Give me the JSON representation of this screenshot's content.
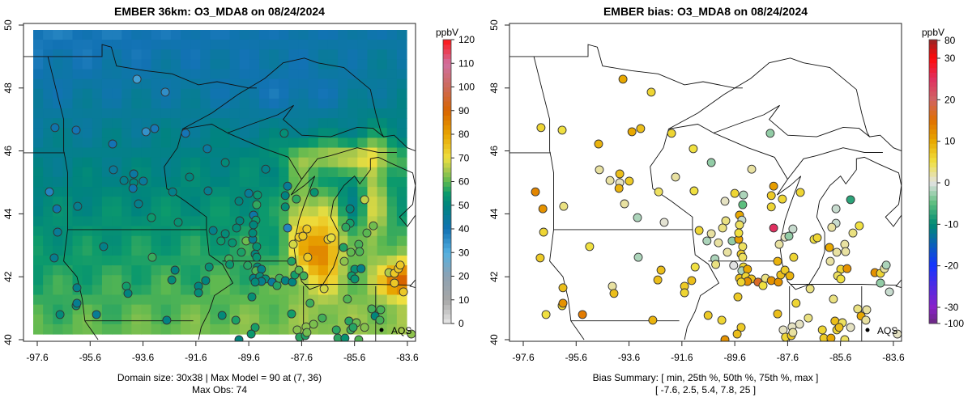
{
  "left": {
    "title": "EMBER 36km: O3_MDA8 on 08/24/2024",
    "caption_line1": "Domain size: 30x38 | Max Model = 90 at (7, 36)",
    "caption_line2": "Max Obs: 74",
    "colorbar": {
      "unit": "ppbV",
      "ticks": [
        "120",
        "110",
        "100",
        "90",
        "80",
        "70",
        "60",
        "50",
        "40",
        "30",
        "20",
        "10",
        "0"
      ]
    },
    "legend_label": "AQS"
  },
  "right": {
    "title": "EMBER bias: O3_MDA8 on 08/24/2024",
    "caption_line1": "Bias Summary: [ min, 25th %, 50th %, 75th %, max ]",
    "caption_line2": "[ -7.6,   2.5,   5.4,   7.8,   25 ]",
    "colorbar": {
      "unit": "ppbV",
      "ticks": [
        "80",
        "30",
        "20",
        "10",
        "0",
        "-10",
        "-20",
        "-30",
        "-100"
      ]
    },
    "legend_label": "AQS"
  },
  "axes": {
    "x_ticks": [
      "-97.6",
      "-95.6",
      "-93.6",
      "-91.6",
      "-89.6",
      "-87.6",
      "-85.6",
      "-83.6"
    ],
    "y_ticks": [
      "40",
      "42",
      "44",
      "46",
      "48",
      "50"
    ]
  },
  "chart_data": {
    "type": "map",
    "lon_range": [
      -98.1,
      -83.3
    ],
    "lat_range": [
      39.95,
      50.05
    ],
    "model_grid_size": "30x38",
    "max_model": 90,
    "max_obs": 74,
    "bias_summary": {
      "min": -7.6,
      "p25": 2.5,
      "p50": 5.4,
      "p75": 7.8,
      "max": 25
    },
    "o3_scale": [
      [
        0,
        "#e8e8e8"
      ],
      [
        10,
        "#a6a6a6"
      ],
      [
        20,
        "#8ea2b2"
      ],
      [
        30,
        "#55b0e0"
      ],
      [
        40,
        "#1272b4"
      ],
      [
        50,
        "#00847e"
      ],
      [
        55,
        "#0c9a6c"
      ],
      [
        60,
        "#5cb850"
      ],
      [
        65,
        "#a8c84c"
      ],
      [
        70,
        "#eee040"
      ],
      [
        80,
        "#e8a400"
      ],
      [
        90,
        "#d86400"
      ],
      [
        100,
        "#cc6a5a"
      ],
      [
        110,
        "#d070a0"
      ],
      [
        120,
        "#ff1414"
      ]
    ],
    "bias_scale": [
      [
        -100,
        "#6a2a80"
      ],
      [
        -30,
        "#8a22c8"
      ],
      [
        -20,
        "#1434ff"
      ],
      [
        -10,
        "#008a74"
      ],
      [
        -5,
        "#5cbe7e"
      ],
      [
        0,
        "#e2e2e2"
      ],
      [
        5,
        "#f0e040"
      ],
      [
        10,
        "#e8a800"
      ],
      [
        15,
        "#e07000"
      ],
      [
        20,
        "#d06464"
      ],
      [
        25,
        "#e03060"
      ],
      [
        30,
        "#ff0a0a"
      ],
      [
        80,
        "#9a2424"
      ]
    ],
    "stations_lon_lat_bias": [
      [
        -93.83,
        48.28,
        10
      ],
      [
        -92.76,
        47.87,
        6
      ],
      [
        -96.93,
        46.74,
        6
      ],
      [
        -96.13,
        46.66,
        5
      ],
      [
        -93.49,
        46.61,
        10
      ],
      [
        -93.16,
        46.71,
        8
      ],
      [
        -91.99,
        46.56,
        6
      ],
      [
        -94.75,
        46.22,
        9
      ],
      [
        -91.17,
        46.07,
        5
      ],
      [
        -90.49,
        45.63,
        -3
      ],
      [
        -94.72,
        45.4,
        2
      ],
      [
        -93.95,
        45.27,
        8
      ],
      [
        -94.32,
        45.06,
        2
      ],
      [
        -93.95,
        44.99,
        1
      ],
      [
        -93.59,
        45.04,
        7
      ],
      [
        -93.98,
        44.81,
        9
      ],
      [
        -91.84,
        45.17,
        2
      ],
      [
        -92.48,
        44.7,
        4
      ],
      [
        -91.14,
        44.73,
        5
      ],
      [
        -97.14,
        44.7,
        13
      ],
      [
        -96.86,
        44.16,
        12
      ],
      [
        -96.07,
        44.24,
        3
      ],
      [
        -93.77,
        44.32,
        2
      ],
      [
        -93.28,
        43.88,
        -2
      ],
      [
        -92.27,
        43.73,
        0.5
      ],
      [
        -96.83,
        43.42,
        6
      ],
      [
        -90.95,
        43.47,
        6
      ],
      [
        -90.49,
        43.37,
        2
      ],
      [
        -90.65,
        43.14,
        -2
      ],
      [
        -95.09,
        42.96,
        5
      ],
      [
        -96.96,
        42.6,
        7
      ],
      [
        -93.25,
        42.62,
        -2
      ],
      [
        -91.1,
        42.31,
        5
      ],
      [
        -92.39,
        42.21,
        8
      ],
      [
        -92.51,
        41.9,
        8
      ],
      [
        -91.23,
        41.88,
        8
      ],
      [
        -91.5,
        41.7,
        7
      ],
      [
        -91.5,
        41.49,
        6
      ],
      [
        -96.1,
        41.65,
        8
      ],
      [
        -94.23,
        41.7,
        2
      ],
      [
        -94.17,
        41.47,
        8
      ],
      [
        -96.13,
        41.08,
        6
      ],
      [
        -96.1,
        41.16,
        12
      ],
      [
        -96.74,
        40.8,
        5
      ],
      [
        -95.36,
        40.8,
        14
      ],
      [
        -92.7,
        40.62,
        9
      ],
      [
        -90.61,
        40.77,
        7
      ],
      [
        -88.26,
        46.56,
        -3
      ],
      [
        -88.96,
        45.42,
        2
      ],
      [
        -89.6,
        44.65,
        6
      ],
      [
        -89.27,
        44.6,
        -2
      ],
      [
        -89.97,
        44.4,
        1
      ],
      [
        -89.3,
        44.29,
        -5
      ],
      [
        -88.13,
        44.88,
        11
      ],
      [
        -88.22,
        44.58,
        7
      ],
      [
        -87.8,
        44.47,
        6
      ],
      [
        -87.12,
        44.68,
        6
      ],
      [
        -88.22,
        44.22,
        6
      ],
      [
        -85.22,
        44.45,
        -7.6
      ],
      [
        -85.77,
        44.16,
        -1
      ],
      [
        -89.42,
        43.96,
        10
      ],
      [
        -89.33,
        43.8,
        -1
      ],
      [
        -89.94,
        43.78,
        3
      ],
      [
        -90.06,
        43.55,
        3
      ],
      [
        -89.42,
        43.65,
        4
      ],
      [
        -88.13,
        43.55,
        25
      ],
      [
        -85.77,
        43.7,
        -1
      ],
      [
        -85.93,
        43.57,
        2
      ],
      [
        -84.89,
        43.62,
        5
      ],
      [
        -87.4,
        43.52,
        -1
      ],
      [
        -85.13,
        43.39,
        3
      ],
      [
        -90.22,
        43.08,
        2
      ],
      [
        -89.7,
        43.14,
        -3
      ],
      [
        -89.45,
        43.19,
        11
      ],
      [
        -89.45,
        43.39,
        5
      ],
      [
        -89.3,
        42.96,
        4
      ],
      [
        -89.88,
        42.78,
        2
      ],
      [
        -89.36,
        42.72,
        7
      ],
      [
        -90.35,
        42.57,
        -2
      ],
      [
        -90.32,
        42.39,
        3
      ],
      [
        -89.3,
        42.62,
        4
      ],
      [
        -89.64,
        42.36,
        0
      ],
      [
        -89.27,
        42.31,
        6
      ],
      [
        -89.33,
        42.19,
        -2
      ],
      [
        -89.12,
        42.24,
        10
      ],
      [
        -89.42,
        41.95,
        8
      ],
      [
        -89.18,
        42.01,
        6
      ],
      [
        -88.97,
        41.93,
        8
      ],
      [
        -89.12,
        41.85,
        12
      ],
      [
        -89.36,
        41.83,
        6
      ],
      [
        -88.72,
        41.83,
        17
      ],
      [
        -88.53,
        41.72,
        5
      ],
      [
        -88.44,
        41.95,
        3
      ],
      [
        -88.22,
        41.88,
        12
      ],
      [
        -87.95,
        41.83,
        12
      ],
      [
        -87.86,
        42.06,
        8
      ],
      [
        -87.7,
        42.21,
        7
      ],
      [
        -87.52,
        42.03,
        9
      ],
      [
        -87.98,
        42.49,
        9
      ],
      [
        -87.92,
        43.03,
        2
      ],
      [
        -87.7,
        43.26,
        1
      ],
      [
        -87.55,
        43.29,
        -3
      ],
      [
        -87.37,
        42.62,
        6
      ],
      [
        -86.6,
        43.19,
        5
      ],
      [
        -86.48,
        43.24,
        6
      ],
      [
        -86.02,
        42.93,
        10
      ],
      [
        -85.74,
        42.78,
        2
      ],
      [
        -85.99,
        42.49,
        2
      ],
      [
        -85.44,
        43.03,
        2
      ],
      [
        -85.41,
        42.8,
        2
      ],
      [
        -85.59,
        42.24,
        6
      ],
      [
        -85.35,
        42.26,
        12
      ],
      [
        -85.71,
        42.03,
        4
      ],
      [
        -85.59,
        41.93,
        5
      ],
      [
        -84.3,
        42.13,
        12
      ],
      [
        -84.09,
        42.11,
        6
      ],
      [
        -83.94,
        42.26,
        2
      ],
      [
        -83.87,
        42.37,
        -2
      ],
      [
        -84.09,
        41.8,
        -3
      ],
      [
        -83.75,
        41.52,
        -1
      ],
      [
        -89.48,
        41.36,
        7
      ],
      [
        -86.75,
        41.62,
        3
      ],
      [
        -87.28,
        41.16,
        6
      ],
      [
        -87.98,
        40.82,
        8
      ],
      [
        -85.87,
        41.29,
        3
      ],
      [
        -84.95,
        40.98,
        3
      ],
      [
        -84.61,
        40.95,
        2
      ],
      [
        -84.82,
        40.75,
        10
      ],
      [
        -84.64,
        40.62,
        2
      ],
      [
        -90.09,
        40.62,
        6
      ],
      [
        -89.36,
        40.39,
        7
      ],
      [
        -89.51,
        40.18,
        8
      ],
      [
        -86.82,
        40.69,
        3
      ],
      [
        -87.15,
        40.49,
        1
      ],
      [
        -87.43,
        40.41,
        1
      ],
      [
        -87.77,
        40.31,
        1
      ],
      [
        -87.68,
        40.08,
        6
      ],
      [
        -87.46,
        40.13,
        7
      ],
      [
        -87.4,
        40.23,
        2
      ],
      [
        -85.81,
        40.59,
        8
      ],
      [
        -85.53,
        40.54,
        4
      ],
      [
        -85.74,
        40.31,
        6
      ],
      [
        -85.65,
        40.39,
        8
      ],
      [
        -85.22,
        40.39,
        1
      ],
      [
        -86.29,
        40.31,
        6
      ],
      [
        -86.23,
        40.05,
        7
      ],
      [
        -85.96,
        40.05,
        10
      ],
      [
        -85.44,
        40.0,
        4
      ],
      [
        -89.97,
        40.0,
        12
      ],
      [
        -83.45,
        40.18,
        1
      ]
    ]
  }
}
